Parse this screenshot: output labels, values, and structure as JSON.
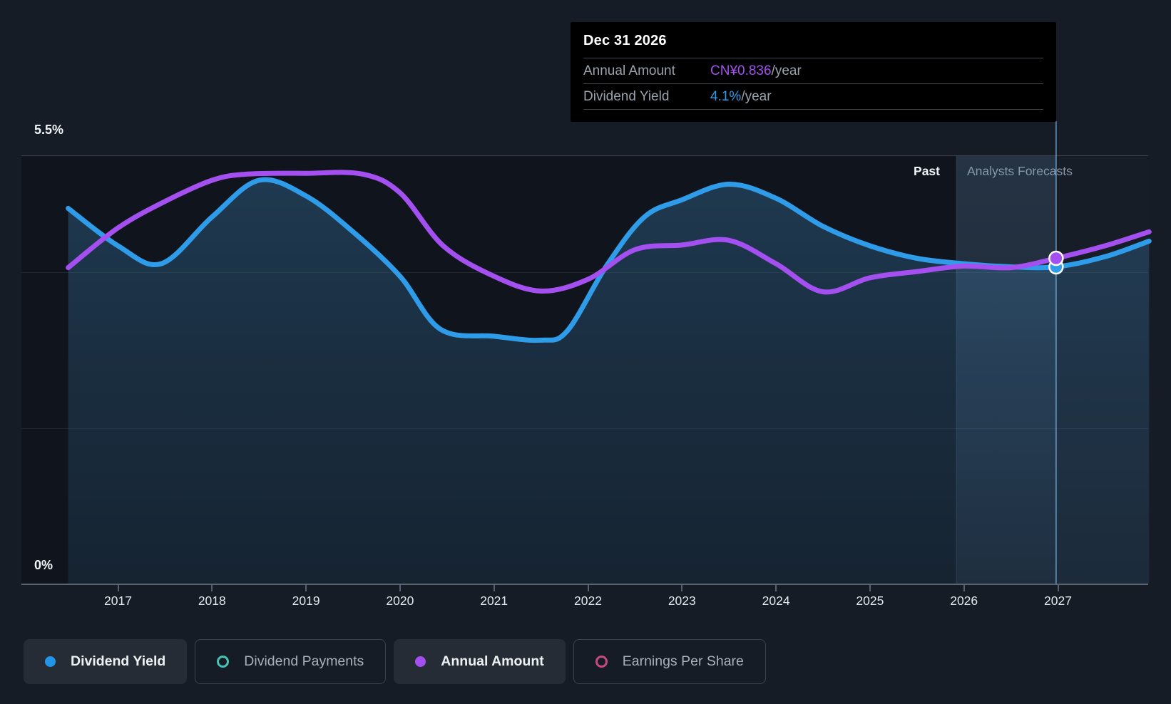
{
  "page": {
    "background": "#161C26"
  },
  "tooltip": {
    "title": "Dec 31 2026",
    "rows": [
      {
        "label": "Annual Amount",
        "value": "CN¥0.836",
        "suffix": "/year",
        "color": "#A44FF0"
      },
      {
        "label": "Dividend Yield",
        "value": "4.1%",
        "suffix": "/year",
        "color": "#2F9CE9"
      }
    ]
  },
  "chart_data": {
    "type": "area",
    "ylabel_top": "5.5%",
    "ylabel_bottom": "0%",
    "ylim": [
      0,
      5.5
    ],
    "unit": "percent_yield",
    "x_ticks": [
      2017,
      2018,
      2019,
      2020,
      2021,
      2022,
      2023,
      2024,
      2025,
      2026,
      2027
    ],
    "gridlines_pct": [
      5.5,
      4.0,
      2.0,
      0
    ],
    "past_label": "Past",
    "forecast_label": "Analysts Forecasts",
    "forecast_start_x": 2025.92,
    "hover_x": 2026.98,
    "hover_date": "Dec 31 2026",
    "series": [
      {
        "name": "Dividend Yield",
        "color": "#2F9CE9",
        "area": true,
        "points": [
          [
            2016.47,
            4.82
          ],
          [
            2017.0,
            4.34
          ],
          [
            2017.46,
            4.11
          ],
          [
            2018.0,
            4.71
          ],
          [
            2018.5,
            5.18
          ],
          [
            2019.0,
            4.98
          ],
          [
            2019.5,
            4.52
          ],
          [
            2020.0,
            3.95
          ],
          [
            2020.43,
            3.27
          ],
          [
            2021.0,
            3.18
          ],
          [
            2021.5,
            3.13
          ],
          [
            2021.78,
            3.25
          ],
          [
            2022.2,
            4.09
          ],
          [
            2022.6,
            4.71
          ],
          [
            2023.0,
            4.93
          ],
          [
            2023.5,
            5.13
          ],
          [
            2024.0,
            4.95
          ],
          [
            2024.5,
            4.59
          ],
          [
            2025.0,
            4.34
          ],
          [
            2025.5,
            4.18
          ],
          [
            2026.0,
            4.11
          ],
          [
            2026.5,
            4.07
          ],
          [
            2026.98,
            4.07
          ],
          [
            2027.5,
            4.2
          ],
          [
            2027.97,
            4.4
          ]
        ]
      },
      {
        "name": "Annual Amount",
        "color": "#A44FF0",
        "area": false,
        "points": [
          [
            2016.47,
            4.06
          ],
          [
            2017.0,
            4.57
          ],
          [
            2017.5,
            4.91
          ],
          [
            2018.0,
            5.18
          ],
          [
            2018.38,
            5.26
          ],
          [
            2019.0,
            5.27
          ],
          [
            2019.6,
            5.26
          ],
          [
            2020.0,
            5.02
          ],
          [
            2020.46,
            4.34
          ],
          [
            2021.0,
            3.95
          ],
          [
            2021.5,
            3.76
          ],
          [
            2022.0,
            3.91
          ],
          [
            2022.5,
            4.29
          ],
          [
            2023.0,
            4.35
          ],
          [
            2023.5,
            4.41
          ],
          [
            2024.0,
            4.11
          ],
          [
            2024.5,
            3.75
          ],
          [
            2025.0,
            3.93
          ],
          [
            2025.5,
            4.01
          ],
          [
            2026.0,
            4.08
          ],
          [
            2026.5,
            4.06
          ],
          [
            2026.98,
            4.18
          ],
          [
            2027.5,
            4.34
          ],
          [
            2027.97,
            4.52
          ]
        ]
      }
    ],
    "markers": [
      {
        "series": "Dividend Yield",
        "x": 2026.98,
        "y": 4.07,
        "color": "#2F9CE9"
      },
      {
        "series": "Annual Amount",
        "x": 2026.98,
        "y": 4.18,
        "color": "#A44FF0"
      }
    ]
  },
  "legend": {
    "items": [
      {
        "label": "Dividend Yield",
        "color": "#2196E8",
        "variant": "filled",
        "active": true
      },
      {
        "label": "Dividend Payments",
        "color": "#45C4B5",
        "variant": "hollow",
        "active": false
      },
      {
        "label": "Annual Amount",
        "color": "#A44FF0",
        "variant": "filled",
        "active": true
      },
      {
        "label": "Earnings Per Share",
        "color": "#C94B7E",
        "variant": "hollow",
        "active": false
      }
    ]
  }
}
